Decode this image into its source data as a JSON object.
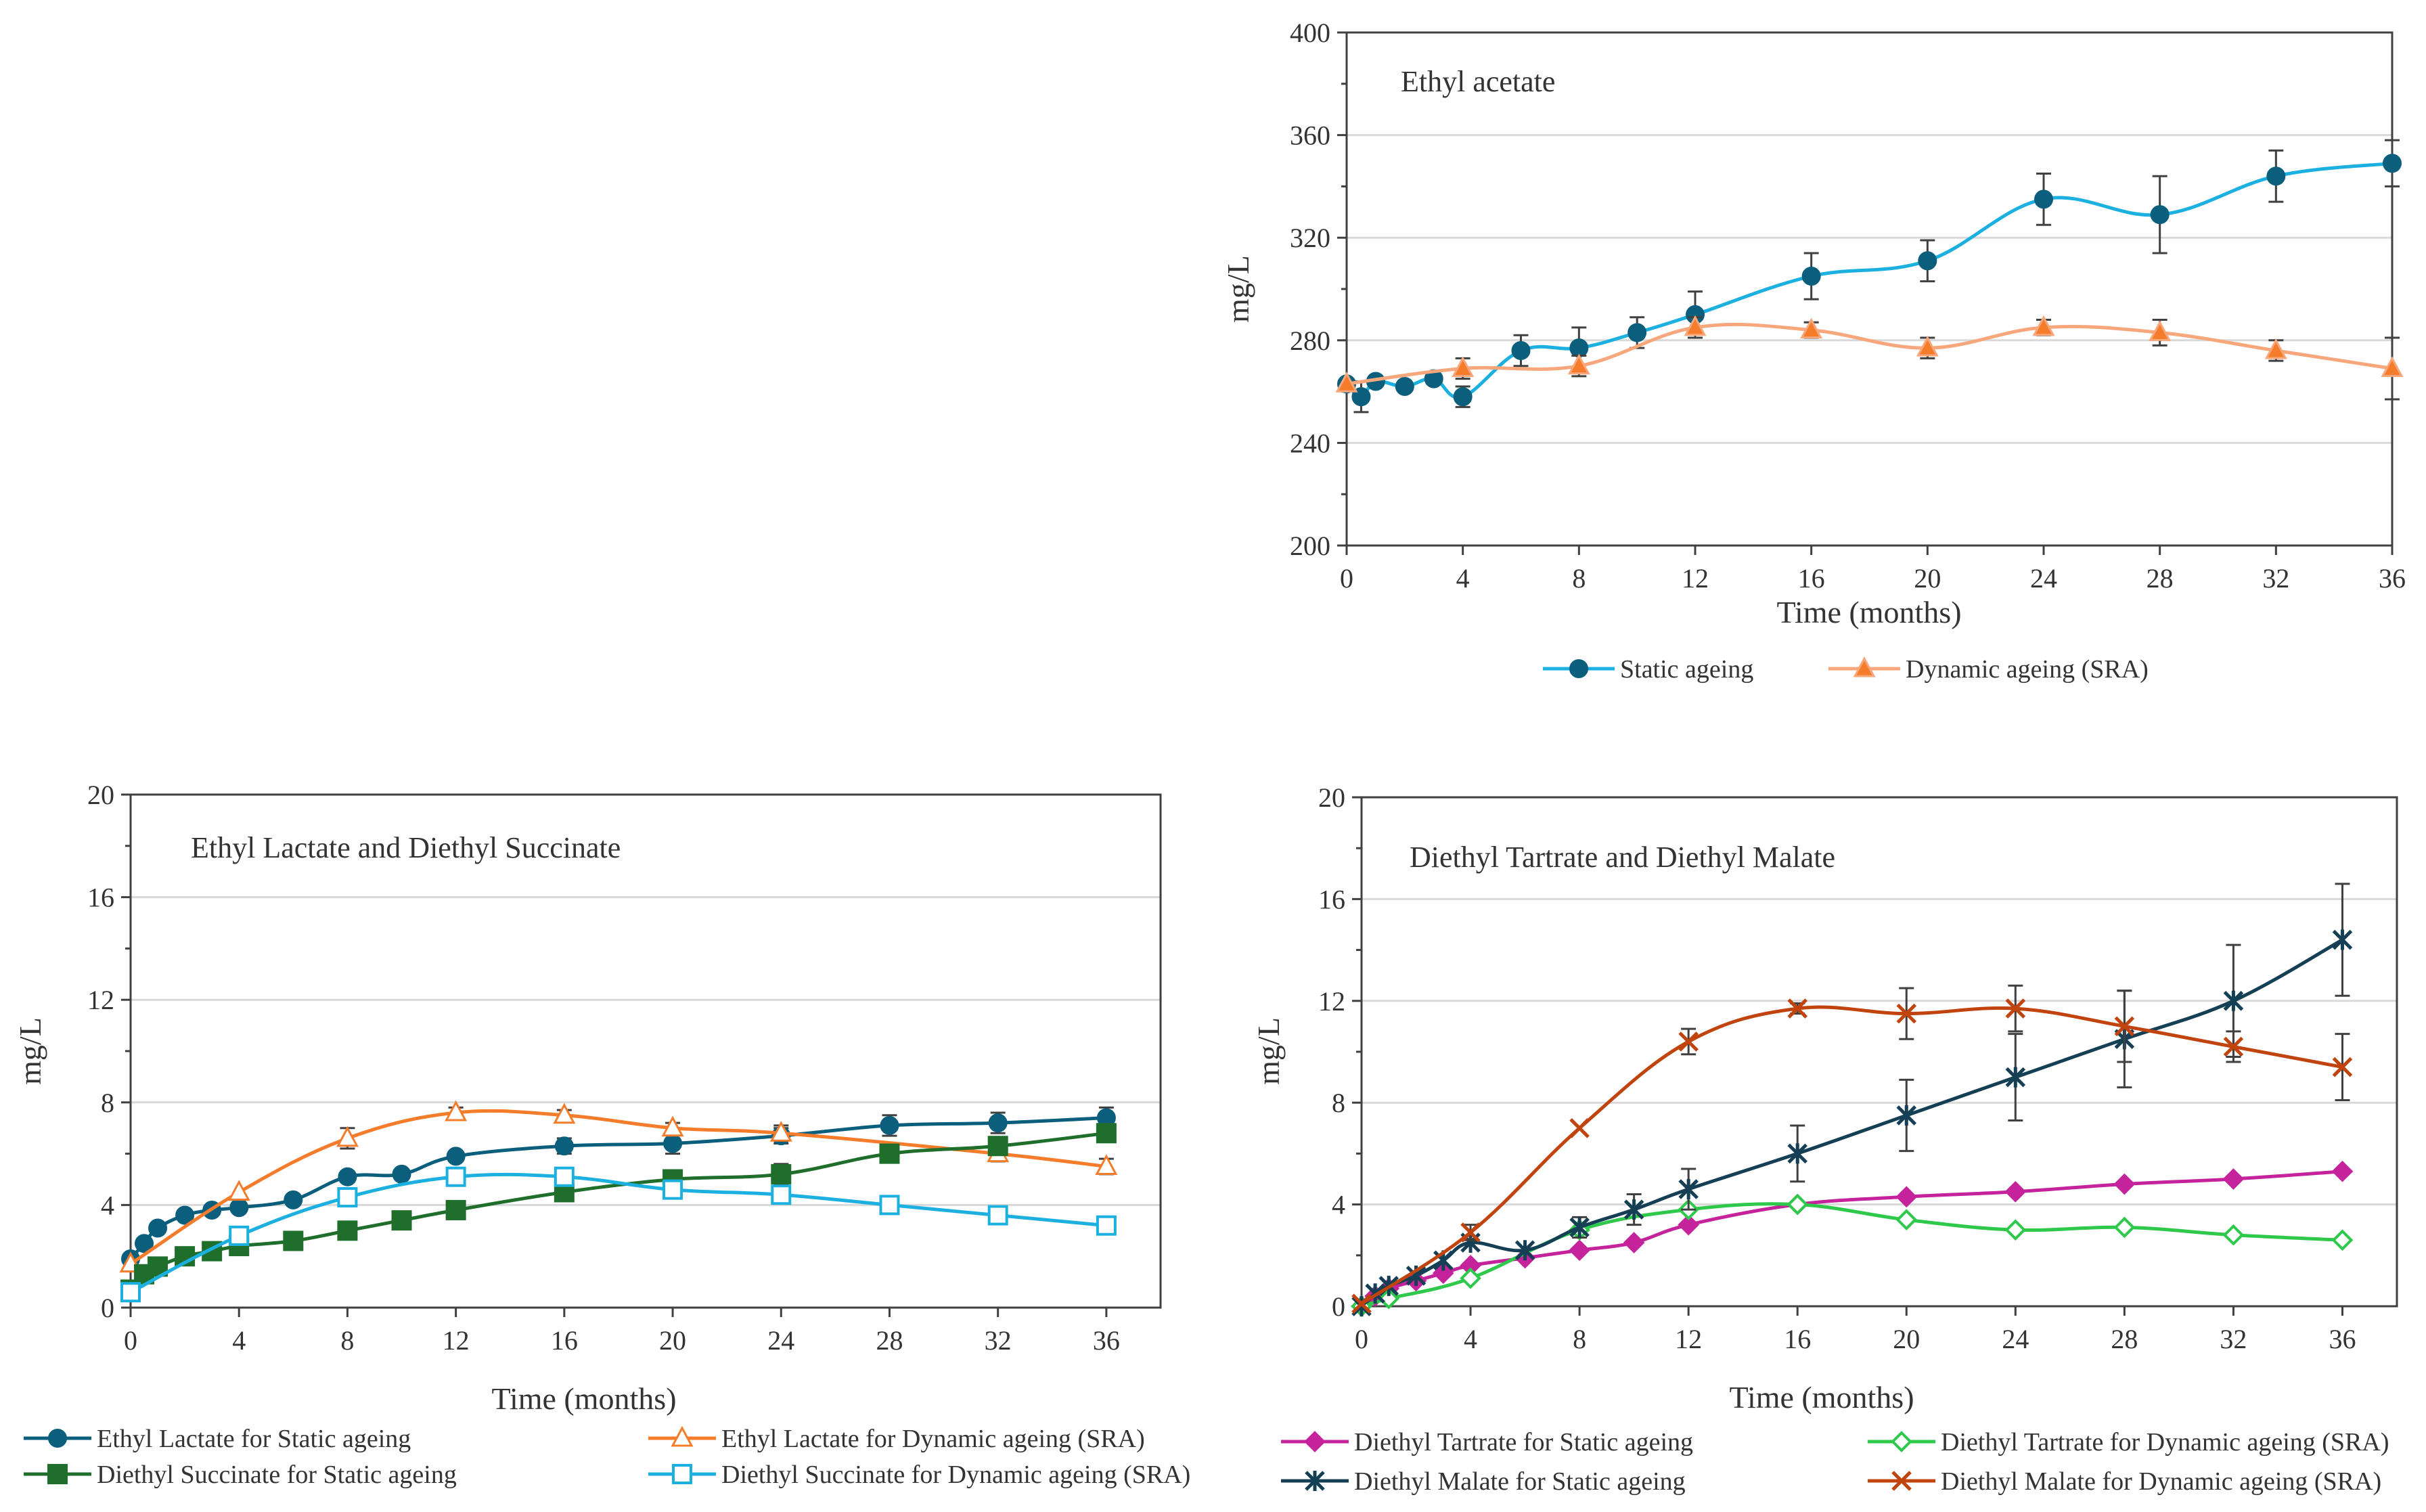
{
  "chart_data": [
    {
      "id": "acetate",
      "type": "line",
      "title": "Ethyl acetate",
      "xlabel": "Time (months)",
      "ylabel": "mg/L",
      "xlim": [
        0,
        36
      ],
      "ylim": [
        200,
        400
      ],
      "xticks": [
        0,
        4,
        8,
        12,
        16,
        20,
        24,
        28,
        32,
        36
      ],
      "yticks": [
        200,
        240,
        280,
        320,
        360,
        400
      ],
      "grid": true,
      "legend_position": "bottom",
      "series": [
        {
          "name": "Static ageing",
          "color": "#1cb0e0",
          "marker": "circle",
          "marker_fill": "#0c5f7c",
          "x": [
            0,
            0.5,
            1,
            2,
            3,
            4,
            6,
            8,
            10,
            12,
            16,
            20,
            24,
            28,
            32,
            36
          ],
          "y": [
            263,
            258,
            264,
            262,
            265,
            258,
            276,
            277,
            283,
            290,
            305,
            311,
            335,
            329,
            344,
            349
          ],
          "err": [
            0,
            6,
            0,
            0,
            0,
            4,
            6,
            8,
            6,
            9,
            9,
            8,
            10,
            15,
            10,
            9
          ]
        },
        {
          "name": "Dynamic ageing (SRA)",
          "color": "#f7a77b",
          "marker": "triangle",
          "marker_fill": "#f47c2a",
          "x": [
            0,
            4,
            8,
            12,
            16,
            20,
            24,
            28,
            32,
            36
          ],
          "y": [
            263,
            269,
            270,
            285,
            284,
            277,
            285,
            283,
            276,
            269
          ],
          "err": [
            0,
            4,
            4,
            4,
            3,
            4,
            3,
            5,
            4,
            12
          ]
        }
      ]
    },
    {
      "id": "lactate",
      "type": "line",
      "title": "Ethyl Lactate and Diethyl Succinate",
      "xlabel": "Time (months)",
      "ylabel": "mg/L",
      "xlim": [
        0,
        38
      ],
      "ylim": [
        0,
        20
      ],
      "xticks": [
        0,
        4,
        8,
        12,
        16,
        20,
        24,
        28,
        32,
        36
      ],
      "yticks": [
        0,
        4,
        8,
        12,
        16,
        20
      ],
      "grid": true,
      "legend_position": "bottom",
      "series": [
        {
          "name": "Ethyl Lactate for Static ageing",
          "color": "#0c5f7c",
          "marker": "circle",
          "marker_fill": "#0c5f7c",
          "x": [
            0,
            0.5,
            1,
            2,
            3,
            4,
            6,
            8,
            10,
            12,
            16,
            20,
            24,
            28,
            32,
            36
          ],
          "y": [
            1.9,
            2.5,
            3.1,
            3.6,
            3.8,
            3.9,
            4.2,
            5.1,
            5.2,
            5.9,
            6.3,
            6.4,
            6.7,
            7.1,
            7.2,
            7.4
          ],
          "err": [
            0,
            0,
            0,
            0,
            0,
            0,
            0,
            0.2,
            0,
            0,
            0.3,
            0.4,
            0.3,
            0.4,
            0.4,
            0.4
          ]
        },
        {
          "name": "Ethyl Lactate for Dynamic ageing (SRA)",
          "color": "#f47c2a",
          "marker": "triangle-open",
          "marker_fill": "#ffffff",
          "x": [
            0,
            4,
            8,
            12,
            16,
            20,
            24,
            32,
            36
          ],
          "y": [
            1.7,
            4.5,
            6.6,
            7.6,
            7.5,
            7.0,
            6.8,
            6.0,
            5.5
          ],
          "err": [
            0,
            0,
            0.4,
            0.2,
            0.2,
            0.2,
            0.3,
            0.3,
            0.3
          ]
        },
        {
          "name": "Diethyl Succinate for Static ageing",
          "color": "#1f6e2c",
          "marker": "square",
          "marker_fill": "#1f6e2c",
          "x": [
            0,
            0.5,
            1,
            2,
            3,
            4,
            6,
            8,
            10,
            12,
            16,
            20,
            24,
            28,
            32,
            36
          ],
          "y": [
            0.7,
            1.3,
            1.6,
            2.0,
            2.2,
            2.4,
            2.6,
            3.0,
            3.4,
            3.8,
            4.5,
            5.0,
            5.2,
            6.0,
            6.3,
            6.8
          ],
          "err": [
            0,
            0,
            0,
            0,
            0,
            0,
            0,
            0,
            0,
            0,
            0,
            0,
            0.4,
            0.3,
            0.3,
            0.3
          ]
        },
        {
          "name": "Diethyl Succinate for Dynamic ageing (SRA)",
          "color": "#1cb0e0",
          "marker": "square-open",
          "marker_fill": "#ffffff",
          "x": [
            0,
            4,
            8,
            12,
            16,
            20,
            24,
            28,
            32,
            36
          ],
          "y": [
            0.6,
            2.8,
            4.3,
            5.1,
            5.1,
            4.6,
            4.4,
            4.0,
            3.6,
            3.2
          ],
          "err": [
            0,
            0,
            0,
            0,
            0,
            0,
            0,
            0,
            0,
            0
          ]
        }
      ]
    },
    {
      "id": "tartrate",
      "type": "line",
      "title": "Diethyl Tartrate and Diethyl Malate",
      "xlabel": "Time (months)",
      "ylabel": "mg/L",
      "xlim": [
        0,
        38
      ],
      "ylim": [
        0,
        20
      ],
      "xticks": [
        0,
        4,
        8,
        12,
        16,
        20,
        24,
        28,
        32,
        36
      ],
      "yticks": [
        0,
        4,
        8,
        12,
        16,
        20
      ],
      "grid": true,
      "legend_position": "bottom",
      "series": [
        {
          "name": "Diethyl Tartrate for Static ageing",
          "color": "#c4239c",
          "marker": "diamond",
          "marker_fill": "#c4239c",
          "x": [
            0,
            0.5,
            1,
            2,
            3,
            4,
            6,
            8,
            10,
            12,
            16,
            20,
            24,
            28,
            32,
            36
          ],
          "y": [
            0,
            0.4,
            0.7,
            1.0,
            1.3,
            1.6,
            1.9,
            2.2,
            2.5,
            3.2,
            4.0,
            4.3,
            4.5,
            4.8,
            5.0,
            5.3
          ],
          "err": [
            0,
            0,
            0,
            0,
            0,
            0,
            0,
            0,
            0,
            0,
            0,
            0,
            0,
            0,
            0,
            0
          ]
        },
        {
          "name": "Diethyl Tartrate for Dynamic ageing (SRA)",
          "color": "#2ec84a",
          "marker": "diamond-open",
          "marker_fill": "#ffffff",
          "x": [
            0,
            1,
            4,
            8,
            12,
            16,
            20,
            24,
            28,
            32,
            36
          ],
          "y": [
            0,
            0.3,
            1.1,
            3.0,
            3.8,
            4.0,
            3.4,
            3.0,
            3.1,
            2.8,
            2.6
          ],
          "err": [
            0,
            0,
            0,
            0,
            0,
            0,
            0,
            0,
            0,
            0,
            0
          ]
        },
        {
          "name": "Diethyl Malate for Static ageing",
          "color": "#143f55",
          "marker": "star",
          "marker_fill": "#143f55",
          "x": [
            0,
            0.5,
            1,
            2,
            3,
            4,
            6,
            8,
            10,
            12,
            16,
            20,
            24,
            28,
            32,
            36
          ],
          "y": [
            0,
            0.5,
            0.8,
            1.2,
            1.8,
            2.5,
            2.2,
            3.1,
            3.8,
            4.6,
            6.0,
            7.5,
            9.0,
            10.5,
            12.0,
            14.4
          ],
          "err": [
            0,
            0,
            0,
            0,
            0,
            0,
            0,
            0.4,
            0.6,
            0.8,
            1.1,
            1.4,
            1.7,
            1.9,
            2.2,
            2.2
          ]
        },
        {
          "name": "Diethyl Malate for Dynamic ageing (SRA)",
          "color": "#c1440e",
          "marker": "x",
          "marker_fill": "#c1440e",
          "x": [
            0,
            4,
            8,
            12,
            16,
            20,
            24,
            28,
            32,
            36
          ],
          "y": [
            0.1,
            2.9,
            7.0,
            10.4,
            11.7,
            11.5,
            11.7,
            11.0,
            10.2,
            9.4
          ],
          "err": [
            0,
            0.3,
            0,
            0.5,
            0.2,
            1.0,
            0.9,
            1.4,
            0.6,
            1.3
          ]
        }
      ]
    }
  ]
}
